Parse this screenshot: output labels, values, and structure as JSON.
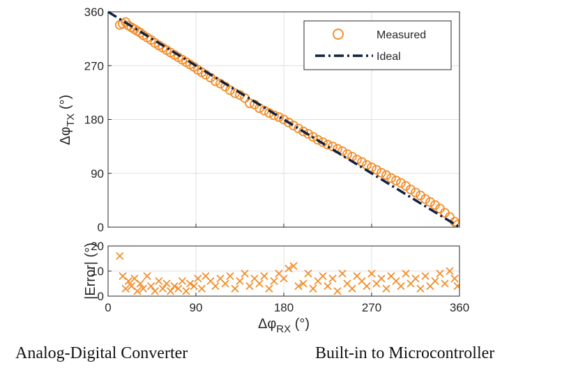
{
  "chart_data": [
    {
      "type": "scatter",
      "xlim": [
        0,
        360
      ],
      "ylim": [
        0,
        360
      ],
      "xticks": [
        0,
        90,
        180,
        270,
        360
      ],
      "yticks": [
        0,
        90,
        180,
        270,
        360
      ],
      "ylabel": {
        "main": "Δφ",
        "sub": "TX",
        "unit": " (°)"
      },
      "grid": true,
      "legend_position": "top-right",
      "series": [
        {
          "name": "Measured",
          "marker": "circle",
          "color": "#F28E2B",
          "x": [
            12,
            15,
            18,
            21,
            24,
            27,
            30,
            33,
            36,
            40,
            44,
            48,
            52,
            56,
            60,
            64,
            68,
            72,
            76,
            80,
            84,
            88,
            92,
            96,
            100,
            105,
            110,
            115,
            120,
            125,
            130,
            135,
            140,
            145,
            150,
            155,
            160,
            165,
            170,
            175,
            180,
            185,
            190,
            195,
            200,
            205,
            210,
            215,
            220,
            225,
            230,
            235,
            240,
            245,
            250,
            255,
            260,
            265,
            270,
            275,
            280,
            285,
            290,
            295,
            300,
            305,
            310,
            315,
            320,
            325,
            330,
            335,
            340,
            345,
            350,
            355,
            358
          ],
          "y": [
            338,
            340,
            343,
            337,
            334,
            331,
            328,
            325,
            321,
            317,
            313,
            308,
            304,
            300,
            296,
            292,
            288,
            284,
            280,
            276,
            272,
            268,
            263,
            259,
            255,
            250,
            244,
            240,
            235,
            229,
            224,
            221,
            216,
            207,
            205,
            199,
            195,
            191,
            187,
            184,
            180,
            175,
            170,
            165,
            160,
            156,
            151,
            146,
            142,
            138,
            135,
            131,
            127,
            122,
            118,
            113,
            109,
            104,
            100,
            96,
            91,
            87,
            82,
            78,
            74,
            69,
            63,
            58,
            53,
            47,
            42,
            37,
            31,
            24,
            17,
            9,
            4
          ]
        },
        {
          "name": "Ideal",
          "style": "dash-dot",
          "color": "#0F2140",
          "x": [
            0,
            360
          ],
          "y": [
            360,
            0
          ]
        }
      ]
    },
    {
      "type": "scatter",
      "xlim": [
        0,
        360
      ],
      "ylim": [
        0,
        20
      ],
      "xticks": [
        0,
        90,
        180,
        270,
        360
      ],
      "yticks": [
        0,
        10,
        20
      ],
      "xlabel": {
        "main": "Δφ",
        "sub": "RX",
        "unit": " (°)"
      },
      "ylabel": "|Error| (°)",
      "grid": true,
      "series": [
        {
          "marker": "x",
          "color": "#F28E2B",
          "x": [
            12,
            15,
            18,
            21,
            24,
            27,
            30,
            33,
            36,
            40,
            44,
            48,
            52,
            56,
            60,
            64,
            68,
            72,
            76,
            80,
            84,
            88,
            92,
            96,
            100,
            105,
            110,
            115,
            120,
            125,
            130,
            135,
            140,
            145,
            150,
            155,
            160,
            165,
            170,
            175,
            180,
            185,
            190,
            195,
            200,
            205,
            210,
            215,
            220,
            225,
            230,
            235,
            240,
            245,
            250,
            255,
            260,
            265,
            270,
            275,
            280,
            285,
            290,
            295,
            300,
            305,
            310,
            315,
            320,
            325,
            330,
            335,
            340,
            345,
            350,
            355,
            358
          ],
          "y": [
            16,
            8,
            3,
            6,
            4,
            7,
            2,
            5,
            3,
            8,
            4,
            2,
            6,
            3,
            5,
            2,
            4,
            3,
            6,
            2,
            5,
            4,
            7,
            3,
            8,
            6,
            4,
            7,
            5,
            8,
            3,
            6,
            9,
            4,
            7,
            5,
            8,
            3,
            6,
            9,
            7,
            11,
            12,
            4,
            5,
            9,
            3,
            6,
            8,
            4,
            7,
            2,
            9,
            5,
            3,
            8,
            6,
            4,
            9,
            5,
            7,
            3,
            8,
            6,
            4,
            9,
            5,
            7,
            3,
            8,
            4,
            6,
            9,
            5,
            10,
            7,
            4
          ]
        }
      ]
    }
  ],
  "captions": {
    "left": "Analog-Digital Converter",
    "right": "Built-in to Microcontroller"
  }
}
